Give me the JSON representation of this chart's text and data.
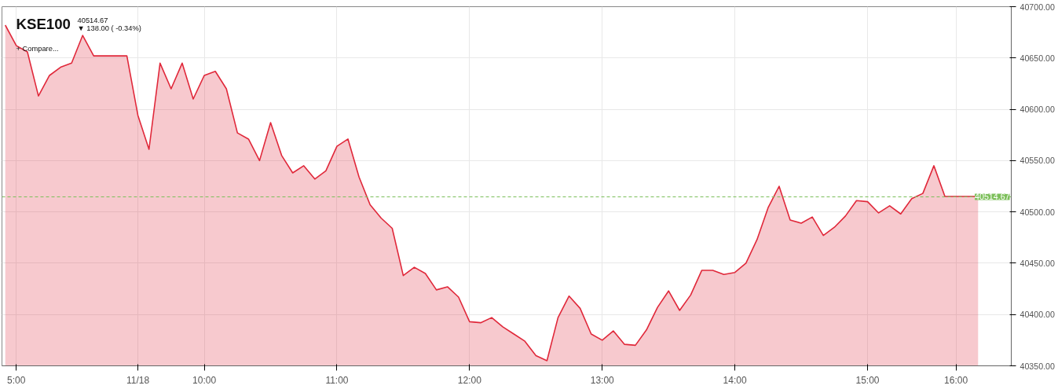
{
  "chart_data": {
    "type": "area",
    "title": "KSE100",
    "subtitle": "40514.67",
    "annotations": [
      "▼ 138.00 ( -0.34%)",
      "+ Compare..."
    ],
    "categories": [
      null,
      "5:00",
      null,
      null,
      null,
      null,
      null,
      null,
      null,
      null,
      null,
      null,
      "11/18",
      null,
      null,
      null,
      null,
      null,
      "10:00",
      null,
      null,
      null,
      null,
      null,
      null,
      null,
      null,
      null,
      null,
      null,
      "11:00",
      null,
      null,
      null,
      null,
      null,
      null,
      null,
      null,
      null,
      null,
      null,
      "12:00",
      null,
      null,
      null,
      null,
      null,
      null,
      null,
      null,
      null,
      null,
      null,
      "13:00",
      null,
      null,
      null,
      null,
      null,
      null,
      null,
      null,
      null,
      null,
      null,
      "14:00",
      null,
      null,
      null,
      null,
      null,
      null,
      null,
      null,
      null,
      null,
      null,
      "15:00",
      null,
      null,
      null,
      null,
      null,
      null,
      null,
      "16:00",
      null,
      null
    ],
    "series": [
      {
        "color": "#e0283a",
        "values": [
          40682,
          40662,
          40656,
          40613,
          40633,
          40641,
          40645,
          40672,
          40652,
          40652,
          40652,
          40652,
          40594,
          40561,
          40645,
          40620,
          40645,
          40610,
          40633,
          40637,
          40620,
          40577,
          40571,
          40550,
          40587,
          40555,
          40538,
          40545,
          40532,
          40540,
          40564,
          40571,
          40534,
          40507,
          40494,
          40484,
          40438,
          40446,
          40440,
          40424,
          40427,
          40417,
          40393,
          40392,
          40397,
          40388,
          40381,
          40374,
          40360,
          40355,
          40397,
          40418,
          40406,
          40381,
          40375,
          40384,
          40371,
          40370,
          40385,
          40407,
          40423,
          40404,
          40419,
          40443,
          40443,
          40439,
          40441,
          40450,
          40473,
          40504,
          40525,
          40492,
          40489,
          40495,
          40477,
          40485,
          40496,
          40511,
          40510,
          40499,
          40506,
          40498,
          40513,
          40518,
          40545,
          40515,
          40515,
          40515,
          40515
        ]
      }
    ],
    "ylim": [
      40350,
      40700
    ],
    "yticks": [
      {
        "value": 40350,
        "label": "40350.00"
      },
      {
        "value": 40400,
        "label": "40400.00"
      },
      {
        "value": 40450,
        "label": "40450.00"
      },
      {
        "value": 40500,
        "label": "40500.00"
      },
      {
        "value": 40550,
        "label": "40550.00"
      },
      {
        "value": 40600,
        "label": "40600.00"
      },
      {
        "value": 40650,
        "label": "40650.00"
      },
      {
        "value": 40700,
        "label": "40700.00"
      }
    ],
    "ref_lines": [
      {
        "axis": "y",
        "value": 40514.67,
        "label": "40514.67",
        "color": "#7cbf5a",
        "line_style": "dashed"
      }
    ],
    "grid": true,
    "marker": "none",
    "line_style": "solid"
  }
}
